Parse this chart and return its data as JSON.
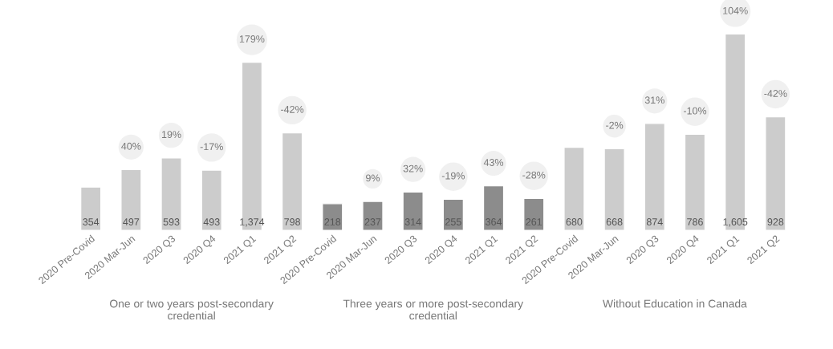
{
  "chart_data": {
    "type": "bar",
    "categories": [
      "2020 Pre-Covid",
      "2020 Mar-Jun",
      "2020 Q3",
      "2020 Q4",
      "2021 Q1",
      "2021 Q2",
      "2020 Pre-Covid",
      "2020 Mar-Jun",
      "2020 Q3",
      "2020 Q4",
      "2021 Q1",
      "2021 Q2",
      "2020 Pre-Covid",
      "2020 Mar-Jun",
      "2020 Q3",
      "2020 Q4",
      "2021 Q1",
      "2021 Q2"
    ],
    "values": [
      354,
      497,
      593,
      493,
      1374,
      798,
      218,
      237,
      314,
      255,
      364,
      261,
      680,
      668,
      874,
      786,
      1605,
      928
    ],
    "colors": [
      "#cccccc",
      "#cccccc",
      "#cccccc",
      "#cccccc",
      "#cccccc",
      "#cccccc",
      "#8c8c8c",
      "#8c8c8c",
      "#8c8c8c",
      "#8c8c8c",
      "#8c8c8c",
      "#8c8c8c",
      "#cccccc",
      "#cccccc",
      "#cccccc",
      "#cccccc",
      "#cccccc",
      "#cccccc"
    ],
    "value_labels": [
      "354",
      "497",
      "593",
      "493",
      "1,374",
      "798",
      "218",
      "237",
      "314",
      "255",
      "364",
      "261",
      "680",
      "668",
      "874",
      "786",
      "1,605",
      "928"
    ],
    "grid": false,
    "legend": false,
    "tick_labels": "x",
    "annotations": [
      "40%",
      "19%",
      "-17%",
      "179%",
      "-42%",
      "9%",
      "32%",
      "-19%",
      "43%",
      "-28%",
      "-2%",
      "31%",
      "-10%",
      "104%",
      "-42%",
      "One or two years post-secondary\ncredential",
      "Three years or more post-secondary\ncredential",
      "Without Education in Canada"
    ]
  }
}
